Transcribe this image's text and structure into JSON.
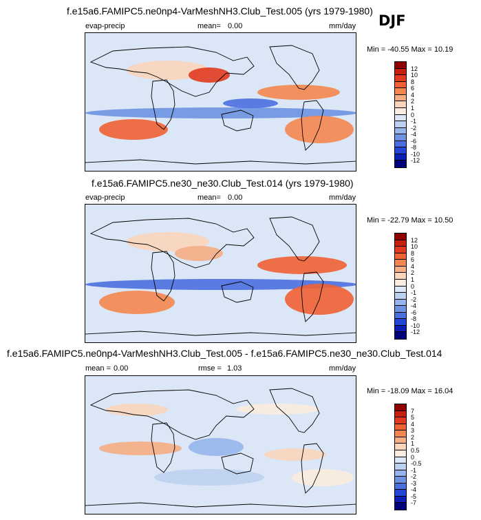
{
  "season": "DJF",
  "panels": [
    {
      "title": "f.e15a6.FAMIPC5.ne0np4-VarMeshNH3.Club_Test.005 (yrs 1979-1980)",
      "left_label": "evap-precip",
      "mean_label": "mean=",
      "mean_value": "0.00",
      "units": "mm/day",
      "minmax": "Min = -40.55 Max =  10.19",
      "colorbar": {
        "levels": [
          "12",
          "10",
          "8",
          "6",
          "4",
          "2",
          "1",
          "0",
          "-1",
          "-2",
          "-4",
          "-6",
          "-8",
          "-10",
          "-12"
        ],
        "colors": [
          "#8f0000",
          "#c81e0e",
          "#e03b1f",
          "#ef6234",
          "#f4874f",
          "#f6ad84",
          "#fad5bc",
          "#fbecdf",
          "#dbe6f6",
          "#bcd1f1",
          "#96b5ec",
          "#6d93e2",
          "#4a6fe0",
          "#2446d6",
          "#0b1fb2",
          "#00007a"
        ]
      }
    },
    {
      "title": "f.e15a6.FAMIPC5.ne30_ne30.Club_Test.014 (yrs 1979-1980)",
      "left_label": "evap-precip",
      "mean_label": "mean=",
      "mean_value": "0.00",
      "units": "mm/day",
      "minmax": "Min = -22.79 Max =  10.50",
      "colorbar": {
        "levels": [
          "12",
          "10",
          "8",
          "6",
          "4",
          "2",
          "1",
          "0",
          "-1",
          "-2",
          "-4",
          "-6",
          "-8",
          "-10",
          "-12"
        ],
        "colors": [
          "#8f0000",
          "#c81e0e",
          "#e03b1f",
          "#ef6234",
          "#f4874f",
          "#f6ad84",
          "#fad5bc",
          "#fbecdf",
          "#dbe6f6",
          "#bcd1f1",
          "#96b5ec",
          "#6d93e2",
          "#4a6fe0",
          "#2446d6",
          "#0b1fb2",
          "#00007a"
        ]
      }
    },
    {
      "title": "f.e15a6.FAMIPC5.ne0np4-VarMeshNH3.Club_Test.005 - f.e15a6.FAMIPC5.ne30_ne30.Club_Test.014",
      "left_label": "mean =",
      "mean_value": "0.00",
      "rmse_label": "rmse =",
      "rmse_value": "1.03",
      "units": "mm/day",
      "minmax": "Min = -18.09 Max =  16.04",
      "colorbar": {
        "levels": [
          "7",
          "5",
          "4",
          "3",
          "2",
          "1",
          "0.5",
          "0",
          "-0.5",
          "-1",
          "-2",
          "-3",
          "-4",
          "-5",
          "-7"
        ],
        "colors": [
          "#8f0000",
          "#c81e0e",
          "#e03b1f",
          "#ef6234",
          "#f4874f",
          "#f6ad84",
          "#fad5bc",
          "#fbecdf",
          "#dbe6f6",
          "#bcd1f1",
          "#96b5ec",
          "#6d93e2",
          "#4a6fe0",
          "#2446d6",
          "#0b1fb2",
          "#00007a"
        ]
      }
    }
  ]
}
